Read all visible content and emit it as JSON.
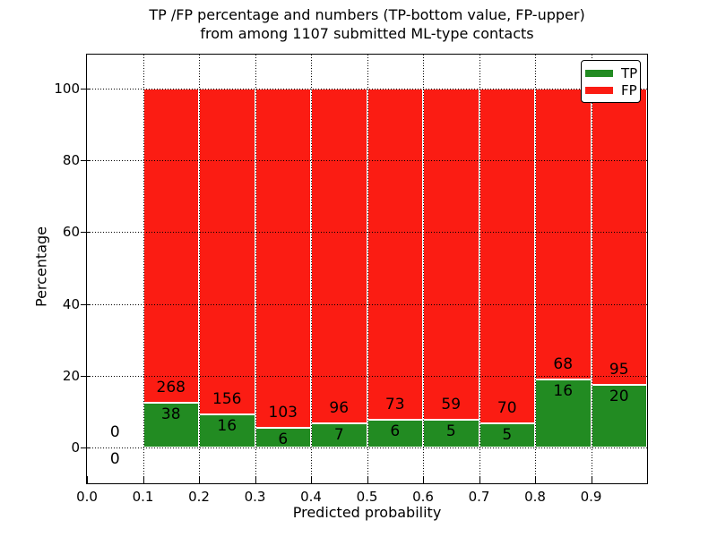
{
  "figure": {
    "title_line1": "TP /FP percentage and numbers (TP-bottom value, FP-upper)",
    "title_line2": "from among 1107 submitted ML-type contacts"
  },
  "chart_data": {
    "type": "bar",
    "stacked": true,
    "title": "TP /FP percentage and numbers (TP-bottom value, FP-upper)\nfrom among 1107 submitted ML-type contacts",
    "xlabel": "Predicted probability",
    "ylabel": "Percentage",
    "xlim": [
      0.0,
      1.0
    ],
    "ylim": [
      -10,
      109.5
    ],
    "xticks": [
      "0.0",
      "0.1",
      "0.2",
      "0.3",
      "0.4",
      "0.5",
      "0.6",
      "0.7",
      "0.8",
      "0.9"
    ],
    "yticks": [
      0,
      20,
      40,
      60,
      80,
      100
    ],
    "grid": "dotted-over-bars",
    "total_contacts": 1107,
    "note": "Each 0.1-wide probability bin is stacked to 100%: TP (green, bottom) + FP (red, top). Bar labels show raw counts (TP-bottom value, FP-upper).",
    "legend": {
      "position": "upper right",
      "entries": [
        {
          "label": "TP",
          "color": "#228b22"
        },
        {
          "label": "FP",
          "color": "#fb1c13"
        }
      ]
    },
    "bins": [
      {
        "x_range": [
          0.0,
          0.1
        ],
        "tp_count": 0,
        "fp_count": 0,
        "tp_pct": 0.0,
        "fp_pct": 0.0
      },
      {
        "x_range": [
          0.1,
          0.2
        ],
        "tp_count": 38,
        "fp_count": 268,
        "tp_pct": 12.42,
        "fp_pct": 87.58
      },
      {
        "x_range": [
          0.2,
          0.3
        ],
        "tp_count": 16,
        "fp_count": 156,
        "tp_pct": 9.3,
        "fp_pct": 90.7
      },
      {
        "x_range": [
          0.3,
          0.4
        ],
        "tp_count": 6,
        "fp_count": 103,
        "tp_pct": 5.5,
        "fp_pct": 94.5
      },
      {
        "x_range": [
          0.4,
          0.5
        ],
        "tp_count": 7,
        "fp_count": 96,
        "tp_pct": 6.8,
        "fp_pct": 93.2
      },
      {
        "x_range": [
          0.5,
          0.6
        ],
        "tp_count": 6,
        "fp_count": 73,
        "tp_pct": 7.59,
        "fp_pct": 92.41
      },
      {
        "x_range": [
          0.6,
          0.7
        ],
        "tp_count": 5,
        "fp_count": 59,
        "tp_pct": 7.81,
        "fp_pct": 92.19
      },
      {
        "x_range": [
          0.7,
          0.8
        ],
        "tp_count": 5,
        "fp_count": 70,
        "tp_pct": 6.67,
        "fp_pct": 93.33
      },
      {
        "x_range": [
          0.8,
          0.9
        ],
        "tp_count": 16,
        "fp_count": 68,
        "tp_pct": 19.05,
        "fp_pct": 80.95
      },
      {
        "x_range": [
          0.9,
          1.0
        ],
        "tp_count": 20,
        "fp_count": 95,
        "tp_pct": 17.39,
        "fp_pct": 82.61
      }
    ]
  }
}
